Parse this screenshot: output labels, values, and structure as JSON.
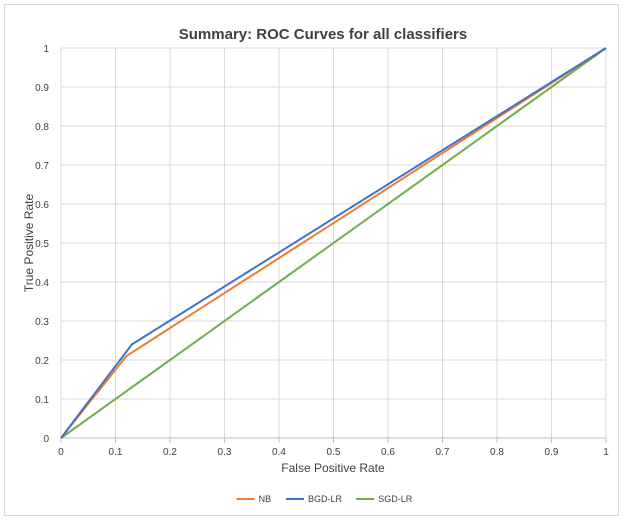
{
  "chart_data": {
    "type": "line",
    "title": "Summary: ROC Curves for all classifiers",
    "xlabel": "False Positive Rate",
    "ylabel": "True Positive Rate",
    "xlim": [
      0,
      1
    ],
    "ylim": [
      0,
      1
    ],
    "xticks": [
      "0",
      "0.1",
      "0.2",
      "0.3",
      "0.4",
      "0.5",
      "0.6",
      "0.7",
      "0.8",
      "0.9",
      "1"
    ],
    "yticks": [
      "0",
      "0.1",
      "0.2",
      "0.3",
      "0.4",
      "0.5",
      "0.6",
      "0.7",
      "0.8",
      "0.9",
      "1"
    ],
    "grid": "horizontal",
    "legend_position": "bottom",
    "series": [
      {
        "name": "NB",
        "color": "#ed7d31",
        "x": [
          0,
          0.12,
          1
        ],
        "y": [
          0,
          0.21,
          1
        ]
      },
      {
        "name": "BGD-LR",
        "color": "#4472c4",
        "x": [
          0,
          0.13,
          1
        ],
        "y": [
          0,
          0.24,
          1
        ]
      },
      {
        "name": "SGD-LR",
        "color": "#70ad47",
        "x": [
          0,
          1
        ],
        "y": [
          0,
          1
        ]
      }
    ]
  }
}
